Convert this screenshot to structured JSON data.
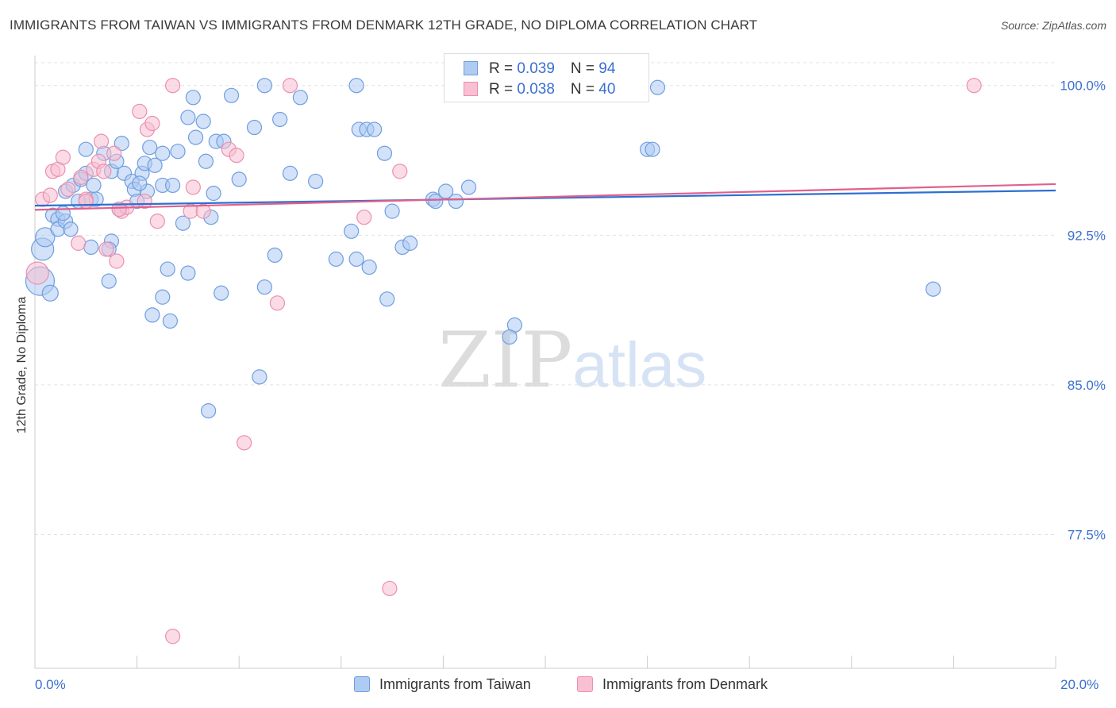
{
  "header": {
    "title": "IMMIGRANTS FROM TAIWAN VS IMMIGRANTS FROM DENMARK 12TH GRADE, NO DIPLOMA CORRELATION CHART",
    "source": "Source: ZipAtlas.com"
  },
  "watermark": {
    "zip": "ZIP",
    "atlas": "atlas"
  },
  "legend": {
    "rows": [
      {
        "r_label": "R = ",
        "r_value": "0.039",
        "n_label": "N = ",
        "n_value": "94"
      },
      {
        "r_label": "R = ",
        "r_value": "0.038",
        "n_label": "N = ",
        "n_value": "40"
      }
    ]
  },
  "chart_data": {
    "type": "scatter",
    "title": "IMMIGRANTS FROM TAIWAN VS IMMIGRANTS FROM DENMARK 12TH GRADE, NO DIPLOMA CORRELATION CHART",
    "xlabel": "",
    "ylabel": "12th Grade, No Diploma",
    "xlim": [
      0,
      20
    ],
    "ylim": [
      70.8,
      101.5
    ],
    "x_tick_labels": [
      "0.0%",
      "20.0%"
    ],
    "y_ticks": [
      77.5,
      85.0,
      92.5,
      100.0
    ],
    "y_tick_labels": [
      "77.5%",
      "85.0%",
      "92.5%",
      "100.0%"
    ],
    "colors": {
      "taiwan_fill": "#aecbf2",
      "taiwan_stroke": "#6f9ee0",
      "taiwan_line": "#2f6fd1",
      "denmark_fill": "#f8c0d2",
      "denmark_stroke": "#ec8fae",
      "denmark_line": "#e0608c",
      "axis_text": "#3a6fd0"
    },
    "series": [
      {
        "name": "Immigrants from Taiwan",
        "R": 0.039,
        "N": 94,
        "trend": {
          "x": [
            0,
            20
          ],
          "y": [
            93.98,
            94.74
          ]
        },
        "points": [
          [
            0.1,
            90.2,
            18
          ],
          [
            0.15,
            91.8,
            14
          ],
          [
            0.2,
            92.4,
            12
          ],
          [
            0.3,
            89.6,
            10
          ],
          [
            0.35,
            93.5,
            9
          ],
          [
            0.45,
            93.3,
            9
          ],
          [
            0.45,
            92.8,
            9
          ],
          [
            0.6,
            93.2,
            9
          ],
          [
            0.7,
            92.8,
            9
          ],
          [
            0.6,
            94.7,
            9
          ],
          [
            0.75,
            95.0,
            9
          ],
          [
            0.9,
            95.3,
            9
          ],
          [
            1.0,
            95.6,
            9
          ],
          [
            1.15,
            95.0,
            9
          ],
          [
            1.1,
            94.3,
            9
          ],
          [
            1.2,
            94.3,
            9
          ],
          [
            1.0,
            96.8,
            9
          ],
          [
            1.35,
            96.6,
            9
          ],
          [
            1.5,
            95.7,
            9
          ],
          [
            1.6,
            96.2,
            9
          ],
          [
            1.7,
            97.1,
            9
          ],
          [
            1.75,
            95.6,
            9
          ],
          [
            1.9,
            95.2,
            9
          ],
          [
            1.95,
            94.8,
            9
          ],
          [
            2.0,
            94.2,
            9
          ],
          [
            2.1,
            95.6,
            9
          ],
          [
            2.15,
            96.1,
            9
          ],
          [
            2.2,
            94.7,
            9
          ],
          [
            2.25,
            96.9,
            9
          ],
          [
            2.35,
            96.0,
            9
          ],
          [
            2.5,
            95.0,
            9
          ],
          [
            2.5,
            96.6,
            9
          ],
          [
            2.7,
            95.0,
            9
          ],
          [
            2.8,
            96.7,
            9
          ],
          [
            2.9,
            93.1,
            9
          ],
          [
            3.0,
            98.4,
            9
          ],
          [
            3.1,
            99.4,
            9
          ],
          [
            3.15,
            97.4,
            9
          ],
          [
            3.3,
            98.2,
            9
          ],
          [
            3.35,
            96.2,
            9
          ],
          [
            3.45,
            93.4,
            9
          ],
          [
            3.5,
            94.6,
            9
          ],
          [
            3.55,
            97.2,
            9
          ],
          [
            3.7,
            97.2,
            9
          ],
          [
            3.85,
            99.5,
            9
          ],
          [
            4.0,
            95.3,
            9
          ],
          [
            4.3,
            97.9,
            9
          ],
          [
            4.5,
            100.0,
            9
          ],
          [
            4.8,
            98.3,
            9
          ],
          [
            5.0,
            95.6,
            9
          ],
          [
            5.2,
            99.4,
            9
          ],
          [
            5.5,
            95.2,
            9
          ],
          [
            1.5,
            92.2,
            9
          ],
          [
            1.1,
            91.9,
            9
          ],
          [
            1.45,
            91.8,
            9
          ],
          [
            1.45,
            90.2,
            9
          ],
          [
            2.6,
            90.8,
            9
          ],
          [
            3.0,
            90.6,
            9
          ],
          [
            2.5,
            89.4,
            9
          ],
          [
            2.3,
            88.5,
            9
          ],
          [
            2.65,
            88.2,
            9
          ],
          [
            3.65,
            89.6,
            9
          ],
          [
            4.5,
            89.9,
            9
          ],
          [
            4.7,
            91.5,
            9
          ],
          [
            5.9,
            91.3,
            9
          ],
          [
            6.2,
            92.7,
            9
          ],
          [
            6.3,
            91.3,
            9
          ],
          [
            6.55,
            90.9,
            9
          ],
          [
            6.9,
            89.3,
            9
          ],
          [
            7.0,
            93.7,
            9
          ],
          [
            7.2,
            91.9,
            9
          ],
          [
            7.35,
            92.1,
            9
          ],
          [
            6.3,
            100.0,
            9
          ],
          [
            6.35,
            97.8,
            9
          ],
          [
            6.5,
            97.8,
            9
          ],
          [
            6.65,
            97.8,
            9
          ],
          [
            6.85,
            96.6,
            9
          ],
          [
            7.8,
            94.3,
            9
          ],
          [
            7.85,
            94.2,
            9
          ],
          [
            8.05,
            94.7,
            9
          ],
          [
            8.25,
            94.2,
            9
          ],
          [
            8.5,
            94.9,
            9
          ],
          [
            9.4,
            88.0,
            9
          ],
          [
            9.3,
            87.4,
            9
          ],
          [
            12.0,
            96.8,
            9
          ],
          [
            12.1,
            96.8,
            9
          ],
          [
            12.2,
            99.9,
            9
          ],
          [
            17.6,
            89.8,
            9
          ],
          [
            4.4,
            85.4,
            9
          ],
          [
            3.4,
            83.7,
            9
          ],
          [
            2.05,
            95.1,
            9
          ],
          [
            1.65,
            93.8,
            9
          ],
          [
            0.85,
            94.2,
            9
          ],
          [
            0.55,
            93.6,
            9
          ]
        ]
      },
      {
        "name": "Immigrants from Denmark",
        "R": 0.038,
        "N": 40,
        "trend": {
          "x": [
            0,
            20
          ],
          "y": [
            93.77,
            95.06
          ]
        },
        "points": [
          [
            0.05,
            90.6,
            14
          ],
          [
            0.15,
            94.3,
            9
          ],
          [
            0.3,
            94.5,
            9
          ],
          [
            0.35,
            95.7,
            9
          ],
          [
            0.45,
            95.8,
            9
          ],
          [
            0.55,
            96.4,
            9
          ],
          [
            0.65,
            94.8,
            9
          ],
          [
            0.9,
            95.4,
            9
          ],
          [
            1.0,
            94.3,
            9
          ],
          [
            1.15,
            95.8,
            9
          ],
          [
            1.25,
            96.2,
            9
          ],
          [
            1.3,
            97.2,
            9
          ],
          [
            1.35,
            95.7,
            9
          ],
          [
            1.55,
            96.6,
            9
          ],
          [
            1.7,
            93.7,
            9
          ],
          [
            1.8,
            93.9,
            9
          ],
          [
            2.05,
            98.7,
            9
          ],
          [
            2.15,
            94.2,
            9
          ],
          [
            2.2,
            97.8,
            9
          ],
          [
            2.3,
            98.1,
            9
          ],
          [
            2.4,
            93.2,
            9
          ],
          [
            2.7,
            100.0,
            9
          ],
          [
            3.05,
            93.7,
            9
          ],
          [
            3.1,
            94.9,
            9
          ],
          [
            3.3,
            93.7,
            9
          ],
          [
            3.8,
            96.8,
            9
          ],
          [
            3.95,
            96.5,
            9
          ],
          [
            5.0,
            100.0,
            9
          ],
          [
            6.45,
            93.4,
            9
          ],
          [
            7.15,
            95.7,
            9
          ],
          [
            0.85,
            92.1,
            9
          ],
          [
            1.4,
            91.8,
            9
          ],
          [
            1.6,
            91.2,
            9
          ],
          [
            4.75,
            89.1,
            9
          ],
          [
            4.1,
            82.1,
            9
          ],
          [
            6.95,
            74.8,
            9
          ],
          [
            2.7,
            72.4,
            9
          ],
          [
            18.4,
            100.0,
            9
          ],
          [
            1.0,
            94.2,
            9
          ],
          [
            1.65,
            93.8,
            9
          ]
        ]
      }
    ]
  },
  "bottom_legend": {
    "items": [
      {
        "label": "Immigrants from Taiwan"
      },
      {
        "label": "Immigrants from Denmark"
      }
    ]
  }
}
